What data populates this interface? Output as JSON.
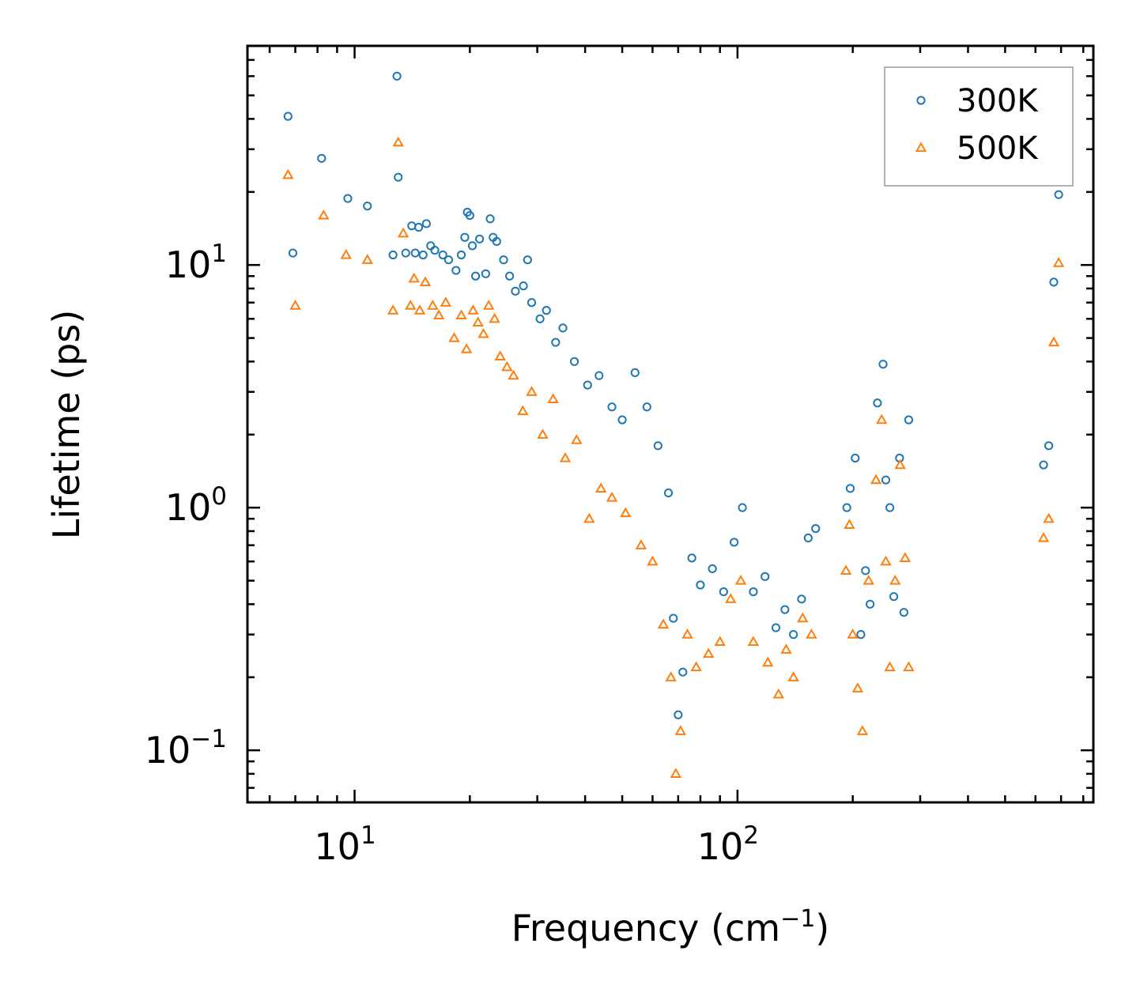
{
  "chart_data": {
    "type": "scatter",
    "title": "",
    "xlabel": "Frequency (cm",
    "xlabel_sup": "−1",
    "xlabel_suffix": ")",
    "ylabel": "Lifetime (ps)",
    "xscale": "log",
    "yscale": "log",
    "xlim": [
      5.25,
      850
    ],
    "ylim": [
      0.061,
      80
    ],
    "x_ticks": [
      {
        "value": 10,
        "base": "10",
        "exp": "1"
      },
      {
        "value": 100,
        "base": "10",
        "exp": "2"
      }
    ],
    "y_ticks": [
      {
        "value": 0.1,
        "base": "10",
        "exp": "−1"
      },
      {
        "value": 1,
        "base": "10",
        "exp": "0"
      },
      {
        "value": 10,
        "base": "10",
        "exp": "1"
      }
    ],
    "legend_position": "top-right",
    "series": [
      {
        "name": "300K",
        "marker": "circle",
        "color": "#1f77b4",
        "x": [
          6.7,
          6.9,
          8.2,
          9.6,
          10.8,
          12.6,
          12.9,
          13.0,
          13.6,
          14.1,
          14.4,
          14.7,
          15.1,
          15.4,
          15.8,
          16.2,
          17.0,
          17.6,
          18.4,
          19.0,
          19.4,
          19.7,
          20.0,
          20.3,
          20.7,
          21.2,
          22.0,
          22.6,
          23.0,
          23.5,
          24.5,
          25.4,
          26.3,
          27.6,
          28.3,
          29.0,
          30.5,
          31.7,
          33.5,
          35.0,
          37.5,
          40.6,
          43.5,
          47.0,
          50.0,
          54.0,
          58.0,
          62.0,
          66.0,
          68.0,
          70.0,
          72.0,
          76.0,
          80.0,
          86.0,
          92.0,
          98.0,
          103.0,
          110.0,
          118.0,
          126.0,
          133.0,
          140.0,
          147.0,
          153.0,
          160.0,
          193.0,
          197.0,
          203.0,
          210.0,
          216.0,
          222.0,
          232.0,
          240.0,
          244.0,
          250.0,
          256.0,
          265.0,
          272.0,
          280.0,
          630.0,
          650.0,
          670.0,
          690.0
        ],
        "y": [
          41.0,
          11.2,
          27.5,
          18.8,
          17.5,
          11.0,
          60.0,
          23.0,
          11.2,
          14.5,
          11.2,
          14.3,
          11.0,
          14.8,
          12.0,
          11.5,
          11.0,
          10.5,
          9.5,
          11.0,
          13.0,
          16.5,
          16.0,
          12.0,
          9.0,
          12.8,
          9.2,
          15.5,
          13.0,
          12.5,
          10.5,
          9.0,
          7.8,
          8.2,
          10.5,
          7.0,
          6.0,
          6.5,
          4.8,
          5.5,
          4.0,
          3.2,
          3.5,
          2.6,
          2.3,
          3.6,
          2.6,
          1.8,
          1.15,
          0.35,
          0.14,
          0.21,
          0.62,
          0.48,
          0.56,
          0.45,
          0.72,
          1.0,
          0.45,
          0.52,
          0.32,
          0.38,
          0.3,
          0.42,
          0.75,
          0.82,
          1.0,
          1.2,
          1.6,
          0.3,
          0.55,
          0.4,
          2.7,
          3.9,
          1.3,
          1.0,
          0.43,
          1.6,
          0.37,
          2.3,
          1.5,
          1.8,
          8.5,
          19.5
        ]
      },
      {
        "name": "500K",
        "marker": "triangle",
        "color": "#ff7f0e",
        "x": [
          6.7,
          7.0,
          8.3,
          9.5,
          10.8,
          12.6,
          13.0,
          13.4,
          14.0,
          14.3,
          14.8,
          15.3,
          16.0,
          16.6,
          17.3,
          18.2,
          19.0,
          19.6,
          20.4,
          21.0,
          21.7,
          22.4,
          23.2,
          24.0,
          25.0,
          26.0,
          27.5,
          29.0,
          31.0,
          33.0,
          35.5,
          38.0,
          41.0,
          44.0,
          47.0,
          51.0,
          56.0,
          60.0,
          64.0,
          67.0,
          69.0,
          71.0,
          74.0,
          78.0,
          84.0,
          90.0,
          96.0,
          102.0,
          110.0,
          120.0,
          128.0,
          134.0,
          140.0,
          148.0,
          156.0,
          192.0,
          196.0,
          200.0,
          206.0,
          212.0,
          220.0,
          230.0,
          238.0,
          244.0,
          250.0,
          258.0,
          266.0,
          274.0,
          280.0,
          630.0,
          650.0,
          670.0,
          690.0
        ],
        "y": [
          23.5,
          6.8,
          16.0,
          11.0,
          10.5,
          6.5,
          32.0,
          13.5,
          6.8,
          8.8,
          6.5,
          8.5,
          6.8,
          6.2,
          7.0,
          5.0,
          6.2,
          4.5,
          6.5,
          5.8,
          5.2,
          6.8,
          6.0,
          4.2,
          3.8,
          3.5,
          2.5,
          3.0,
          2.0,
          2.8,
          1.6,
          1.9,
          0.9,
          1.2,
          1.1,
          0.95,
          0.7,
          0.6,
          0.33,
          0.2,
          0.08,
          0.12,
          0.3,
          0.22,
          0.25,
          0.28,
          0.42,
          0.5,
          0.28,
          0.23,
          0.17,
          0.26,
          0.2,
          0.35,
          0.3,
          0.55,
          0.85,
          0.3,
          0.18,
          0.12,
          0.5,
          1.3,
          2.3,
          0.6,
          0.22,
          0.5,
          1.5,
          0.62,
          0.22,
          0.75,
          0.9,
          4.8,
          10.2
        ]
      }
    ]
  }
}
